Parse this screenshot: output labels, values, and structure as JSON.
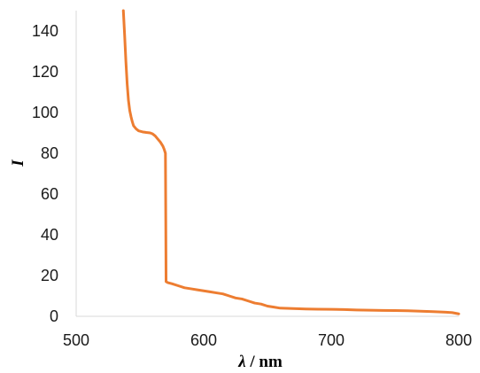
{
  "chart_data": {
    "type": "line",
    "title": "",
    "xlabel": {
      "symbol": "λ",
      "unit": " / nm"
    },
    "ylabel": "I",
    "xlim": [
      500,
      800
    ],
    "ylim": [
      0,
      150
    ],
    "x_ticks": [
      "500",
      "600",
      "700",
      "800"
    ],
    "y_ticks": [
      "0",
      "20",
      "40",
      "60",
      "80",
      "100",
      "120",
      "140"
    ],
    "grid": false,
    "legend": "none",
    "series": [
      {
        "color": "#ED7D31",
        "points": [
          [
            537,
            150
          ],
          [
            538,
            138
          ],
          [
            539,
            125
          ],
          [
            540,
            114
          ],
          [
            541,
            106
          ],
          [
            542,
            101
          ],
          [
            543,
            98
          ],
          [
            544,
            95.5
          ],
          [
            545,
            93.5
          ],
          [
            547,
            92
          ],
          [
            549,
            91
          ],
          [
            552,
            90.5
          ],
          [
            555,
            90.2
          ],
          [
            558,
            90
          ],
          [
            560,
            89.5
          ],
          [
            562,
            88.5
          ],
          [
            564,
            87
          ],
          [
            566,
            85.5
          ],
          [
            568,
            83.5
          ],
          [
            569,
            82
          ],
          [
            570,
            80
          ],
          [
            570.5,
            17
          ],
          [
            572,
            16.5
          ],
          [
            575,
            16
          ],
          [
            580,
            15
          ],
          [
            585,
            14
          ],
          [
            590,
            13.5
          ],
          [
            595,
            13
          ],
          [
            600,
            12.5
          ],
          [
            605,
            12
          ],
          [
            610,
            11.5
          ],
          [
            615,
            11
          ],
          [
            620,
            10
          ],
          [
            625,
            9
          ],
          [
            630,
            8.5
          ],
          [
            635,
            7.5
          ],
          [
            640,
            6.5
          ],
          [
            645,
            6
          ],
          [
            650,
            5
          ],
          [
            655,
            4.5
          ],
          [
            660,
            4
          ],
          [
            670,
            3.8
          ],
          [
            680,
            3.6
          ],
          [
            690,
            3.5
          ],
          [
            700,
            3.4
          ],
          [
            710,
            3.3
          ],
          [
            720,
            3.1
          ],
          [
            730,
            3
          ],
          [
            740,
            2.9
          ],
          [
            750,
            2.8
          ],
          [
            760,
            2.7
          ],
          [
            770,
            2.5
          ],
          [
            780,
            2.3
          ],
          [
            790,
            2
          ],
          [
            795,
            1.8
          ],
          [
            800,
            1.2
          ]
        ]
      }
    ]
  }
}
